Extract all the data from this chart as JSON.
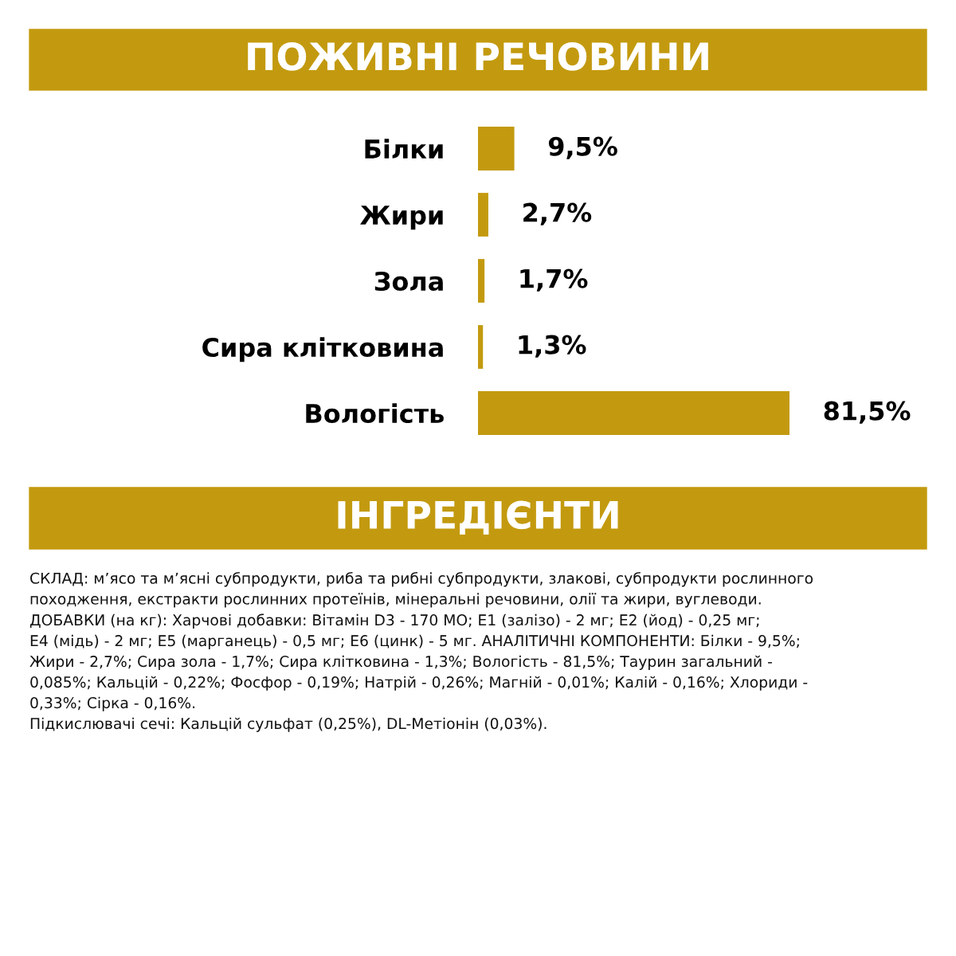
{
  "chart_data": {
    "type": "bar",
    "orientation": "horizontal",
    "title": "ПОЖИВНІ РЕЧОВИНИ",
    "categories": [
      "Білки",
      "Жири",
      "Зола",
      "Сира клітковина",
      "Вологість"
    ],
    "values": [
      9.5,
      2.7,
      1.7,
      1.3,
      81.5
    ],
    "value_labels": [
      "9,5%",
      "2,7%",
      "1,7%",
      "1,3%",
      "81,5%"
    ],
    "color": "#c39a0f",
    "grid": false,
    "legend": false,
    "tick_labels": "y",
    "annotations": [
      "ІНГРЕДІЄНТИ",
      "СКЛАД: м’ясо та м’ясні субпродукти, риба та рибні субпродукти, злакові, субпродукти рослинного\nпоходження, екстракти рослинних протеїнів, мінеральні речовини, олії та жири, вуглеводи.\nДОБАВКИ (на кг): Харчові добавки: Вітамін D3 - 170 МО; Е1 (залізо) - 2 мг; Е2 (йод) - 0,25 мг;\nЕ4 (мідь) - 2 мг; Е5 (марганець) - 0,5 мг; Е6 (цинк) - 5 мг. АНАЛІТИЧНІ КОМПОНЕНТИ: Білки - 9,5%;\nЖири - 2,7%; Сира зола - 1,7%; Сира клітковина - 1,3%; Вологість - 81,5%; Таурин загальний -\n0,085%; Кальцій - 0,22%; Фосфор - 0,19%; Натрій - 0,26%; Магній - 0,01%; Калій - 0,16%; Хлориди -\n0,33%; Сірка - 0,16%.\nПідкислювачі сечі: Кальцій сульфат (0,25%), DL-Метіонін (0,03%)."
    ]
  }
}
